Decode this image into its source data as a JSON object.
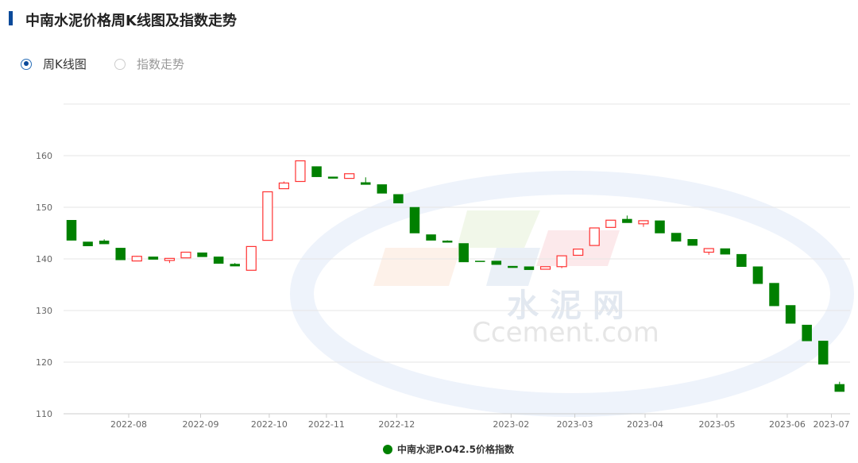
{
  "header": {
    "title": "中南水泥价格周K线图及指数走势"
  },
  "tabs": [
    {
      "label": "周K线图",
      "selected": true
    },
    {
      "label": "指数走势",
      "selected": false
    }
  ],
  "watermark": {
    "cn": "水 泥 网",
    "en": "Ccement.com"
  },
  "chart_data": {
    "type": "candlestick",
    "series_name": "中南水泥P.O42.5价格指数",
    "colors": {
      "up": "#ff3333",
      "down": "#008000"
    },
    "ylim": [
      110,
      170
    ],
    "yticks": [
      110,
      120,
      130,
      140,
      150,
      160
    ],
    "xticks": [
      "2022-08",
      "2022-09",
      "2022-10",
      "2022-11",
      "2022-12",
      "2023-02",
      "2023-03",
      "2023-04",
      "2023-05",
      "2023-06",
      "2023-07"
    ],
    "grid": true,
    "legend": "bottom",
    "ohlc_order": [
      "open",
      "close",
      "low",
      "high"
    ],
    "candles": [
      [
        147.5,
        143.6,
        143.6,
        147.5
      ],
      [
        143.3,
        142.5,
        142.5,
        143.3
      ],
      [
        143.5,
        142.9,
        142.9,
        143.8
      ],
      [
        142.1,
        139.8,
        139.8,
        142.1
      ],
      [
        139.6,
        140.5,
        139.6,
        140.6
      ],
      [
        140.4,
        139.9,
        139.9,
        140.4
      ],
      [
        139.7,
        140.1,
        139.2,
        140.1
      ],
      [
        140.2,
        141.3,
        140.2,
        141.3
      ],
      [
        141.2,
        140.4,
        140.4,
        141.2
      ],
      [
        140.4,
        139.1,
        139.1,
        140.4
      ],
      [
        139.0,
        138.6,
        138.6,
        139.2
      ],
      [
        137.8,
        142.4,
        137.8,
        142.4
      ],
      [
        143.6,
        153.0,
        143.6,
        153.0
      ],
      [
        153.6,
        154.7,
        153.6,
        155.0
      ],
      [
        155.0,
        159.0,
        155.0,
        159.0
      ],
      [
        157.9,
        155.9,
        155.9,
        157.9
      ],
      [
        155.9,
        155.6,
        155.6,
        155.9
      ],
      [
        155.6,
        156.5,
        155.6,
        156.5
      ],
      [
        154.8,
        154.4,
        154.4,
        155.8
      ],
      [
        154.4,
        152.7,
        152.7,
        154.4
      ],
      [
        152.5,
        150.8,
        150.8,
        152.5
      ],
      [
        150.0,
        145.0,
        145.0,
        150.0
      ],
      [
        144.7,
        143.6,
        143.6,
        144.7
      ],
      [
        143.5,
        143.2,
        143.2,
        143.6
      ],
      [
        143.0,
        139.4,
        139.4,
        143.0
      ],
      [
        139.6,
        139.5,
        139.5,
        139.6
      ],
      [
        139.6,
        138.9,
        138.9,
        139.6
      ],
      [
        138.6,
        138.3,
        138.3,
        138.6
      ],
      [
        138.5,
        137.9,
        137.9,
        138.5
      ],
      [
        138.0,
        138.5,
        138.0,
        138.5
      ],
      [
        138.5,
        140.6,
        138.2,
        140.6
      ],
      [
        140.7,
        141.9,
        140.7,
        141.9
      ],
      [
        142.6,
        146.0,
        142.6,
        146.0
      ],
      [
        146.1,
        147.5,
        146.1,
        147.5
      ],
      [
        147.7,
        147.0,
        147.0,
        148.4
      ],
      [
        146.8,
        147.4,
        146.2,
        147.4
      ],
      [
        147.4,
        145.0,
        145.0,
        147.4
      ],
      [
        145.0,
        143.4,
        143.4,
        145.0
      ],
      [
        143.8,
        142.6,
        142.6,
        143.8
      ],
      [
        141.3,
        142.0,
        140.8,
        142.0
      ],
      [
        142.0,
        140.9,
        140.9,
        142.0
      ],
      [
        140.9,
        138.5,
        138.5,
        140.9
      ],
      [
        138.5,
        135.2,
        135.2,
        138.5
      ],
      [
        135.3,
        130.9,
        130.9,
        135.3
      ],
      [
        131.0,
        127.5,
        127.5,
        131.0
      ],
      [
        127.2,
        124.1,
        124.1,
        127.2
      ],
      [
        124.1,
        119.6,
        119.6,
        124.1
      ],
      [
        115.7,
        114.3,
        114.3,
        116.2
      ]
    ]
  }
}
